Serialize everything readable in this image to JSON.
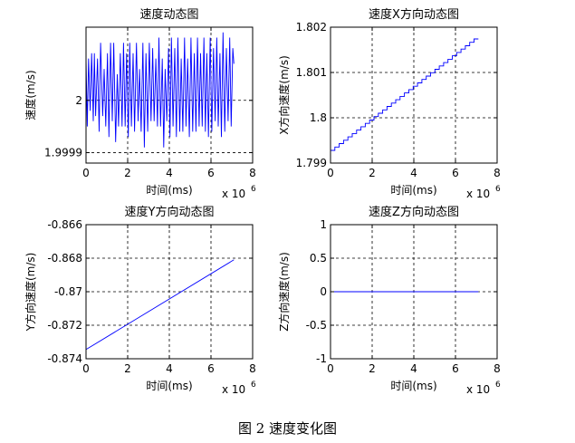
{
  "caption": "图 2  速度变化图",
  "chart_data": [
    {
      "type": "line",
      "title": "速度动态图",
      "xlabel": "时间(ms)",
      "ylabel": "速度(m/s)",
      "x_exponent_label": "x 10",
      "x_exponent": "6",
      "xlim": [
        0,
        8
      ],
      "ylim": [
        1.99988,
        2.00014
      ],
      "xticks": [
        "0",
        "2",
        "4",
        "6",
        "8"
      ],
      "yticks": [
        {
          "v": 1.9999,
          "label": "1.9999"
        },
        {
          "v": 2.0,
          "label": "2"
        }
      ],
      "grid": true,
      "series": [
        {
          "color": "#0000ff",
          "x": [
            0.0,
            0.06,
            0.12,
            0.2,
            0.27,
            0.35,
            0.4,
            0.46,
            0.55,
            0.63,
            0.7,
            0.8,
            0.87,
            0.95,
            1.03,
            1.1,
            1.18,
            1.26,
            1.33,
            1.42,
            1.5,
            1.56,
            1.65,
            1.73,
            1.8,
            1.88,
            1.95,
            2.03,
            2.1,
            2.18,
            2.26,
            2.33,
            2.42,
            2.5,
            2.57,
            2.65,
            2.73,
            2.8,
            2.88,
            2.96,
            3.04,
            3.12,
            3.2,
            3.27,
            3.35,
            3.43,
            3.5,
            3.58,
            3.66,
            3.73,
            3.8,
            3.88,
            3.96,
            4.03,
            4.1,
            4.18,
            4.26,
            4.34,
            4.41,
            4.5,
            4.57,
            4.65,
            4.73,
            4.8,
            4.88,
            4.96,
            5.04,
            5.12,
            5.2,
            5.28,
            5.35,
            5.43,
            5.5,
            5.58,
            5.66,
            5.73,
            5.8,
            5.88,
            5.96,
            6.04,
            6.12,
            6.2,
            6.28,
            6.35,
            6.43,
            6.5,
            6.58,
            6.66,
            6.74,
            6.82,
            6.9,
            6.97,
            7.05,
            7.1
          ],
          "values": [
            2.00008,
            1.99995,
            2.00008,
            1.99998,
            2.00009,
            1.99996,
            2.00009,
            1.99997,
            2.00008,
            1.99994,
            2.00011,
            1.99997,
            2.00006,
            1.99995,
            2.00009,
            1.99993,
            2.00011,
            1.99996,
            2.00011,
            1.99992,
            2.00005,
            1.99995,
            2.00009,
            1.99995,
            2.00011,
            1.99995,
            2.00009,
            1.99993,
            2.00011,
            1.99995,
            2.00009,
            1.99994,
            2.00011,
            1.99996,
            2.00006,
            1.99994,
            2.00011,
            1.99991,
            2.00009,
            1.99994,
            2.00011,
            1.99996,
            2.0001,
            1.99996,
            2.00008,
            1.99995,
            2.00012,
            1.99995,
            2.00008,
            1.99991,
            2.00006,
            1.99996,
            2.0001,
            1.99993,
            2.00012,
            1.99995,
            2.0001,
            1.99993,
            2.00012,
            1.99994,
            2.00008,
            1.99994,
            2.00012,
            1.99995,
            2.00008,
            1.99993,
            2.00012,
            1.99994,
            2.00009,
            1.99994,
            2.00012,
            1.99995,
            2.00009,
            1.99995,
            2.00012,
            1.99994,
            2.00009,
            1.99993,
            2.00012,
            1.99994,
            2.0001,
            1.99996,
            2.00012,
            1.99995,
            2.00009,
            1.99993,
            2.00013,
            1.99994,
            2.0001,
            1.99996,
            2.00012,
            1.99995,
            2.0001,
            2.00007
          ]
        }
      ]
    },
    {
      "type": "line",
      "title": "速度X方向动态图",
      "xlabel": "时间(ms)",
      "ylabel": "X方向速度(m/s)",
      "x_exponent_label": "x 10",
      "x_exponent": "6",
      "xlim": [
        0,
        8
      ],
      "ylim": [
        1.799,
        1.802
      ],
      "xticks": [
        "0",
        "2",
        "4",
        "6",
        "8"
      ],
      "yticks": [
        {
          "v": 1.799,
          "label": "1.799"
        },
        {
          "v": 1.8,
          "label": "1.8"
        },
        {
          "v": 1.801,
          "label": "1.801"
        },
        {
          "v": 1.802,
          "label": "1.802"
        }
      ],
      "grid": true,
      "step": true,
      "series": [
        {
          "color": "#0000ff",
          "x": [
            0.0,
            7.1
          ],
          "values": [
            1.79928,
            1.80174
          ]
        }
      ]
    },
    {
      "type": "line",
      "title": "速度Y方向动态图",
      "xlabel": "时间(ms)",
      "ylabel": "Y方向速度(m/s)",
      "x_exponent_label": "x 10",
      "x_exponent": "6",
      "xlim": [
        0,
        8
      ],
      "ylim": [
        -0.874,
        -0.866
      ],
      "xticks": [
        "0",
        "2",
        "4",
        "6",
        "8"
      ],
      "yticks": [
        {
          "v": -0.874,
          "label": "-0.874"
        },
        {
          "v": -0.872,
          "label": "-0.872"
        },
        {
          "v": -0.87,
          "label": "-0.87"
        },
        {
          "v": -0.868,
          "label": "-0.868"
        },
        {
          "v": -0.866,
          "label": "-0.866"
        }
      ],
      "grid": true,
      "series": [
        {
          "color": "#0000ff",
          "x": [
            0.0,
            7.1
          ],
          "values": [
            -0.87345,
            -0.8681
          ]
        }
      ]
    },
    {
      "type": "line",
      "title": "速度Z方向动态图",
      "xlabel": "时间(ms)",
      "ylabel": "Z方向速度(m/s)",
      "x_exponent_label": "x 10",
      "x_exponent": "6",
      "xlim": [
        0,
        8
      ],
      "ylim": [
        -1,
        1
      ],
      "xticks": [
        "0",
        "2",
        "4",
        "6",
        "8"
      ],
      "yticks": [
        {
          "v": -1,
          "label": "-1"
        },
        {
          "v": -0.5,
          "label": "-0.5"
        },
        {
          "v": 0,
          "label": "0"
        },
        {
          "v": 0.5,
          "label": "0.5"
        },
        {
          "v": 1,
          "label": "1"
        }
      ],
      "grid": true,
      "series": [
        {
          "color": "#0000ff",
          "x": [
            0.0,
            7.1
          ],
          "values": [
            0,
            0
          ]
        }
      ]
    }
  ]
}
